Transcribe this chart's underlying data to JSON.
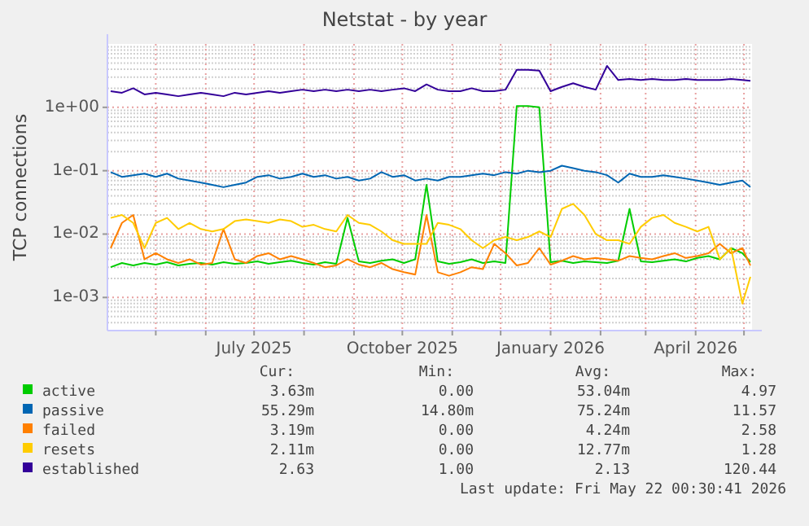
{
  "chart_data": {
    "type": "line",
    "title": "Netstat - by year",
    "ylabel": "TCP connections",
    "log": "y",
    "grid": true,
    "legend": "bottom",
    "xlim": [
      "2025-04-01",
      "2026-05-06"
    ],
    "xticks": [
      {
        "value": "2025-05-01",
        "label": null
      },
      {
        "value": "2025-06-01",
        "label": null
      },
      {
        "value": "2025-07-01",
        "label": "July 2025"
      },
      {
        "value": "2025-08-01",
        "label": null
      },
      {
        "value": "2025-09-01",
        "label": null
      },
      {
        "value": "2025-10-01",
        "label": "October 2025"
      },
      {
        "value": "2025-11-01",
        "label": null
      },
      {
        "value": "2025-12-01",
        "label": null
      },
      {
        "value": "2026-01-01",
        "label": "January 2026"
      },
      {
        "value": "2026-02-01",
        "label": null
      },
      {
        "value": "2026-03-01",
        "label": null
      },
      {
        "value": "2026-04-01",
        "label": "April 2026"
      },
      {
        "value": "2026-05-01",
        "label": null
      }
    ],
    "ylim": [
      0.0003,
      10
    ],
    "yticks": [
      {
        "value": 0.001,
        "label": "1e-03"
      },
      {
        "value": 0.01,
        "label": "1e-02"
      },
      {
        "value": 0.1,
        "label": "1e-01"
      },
      {
        "value": 1,
        "label": "1e+00"
      }
    ],
    "x": [
      "2025-04-03",
      "2025-04-10",
      "2025-04-17",
      "2025-04-24",
      "2025-05-01",
      "2025-05-08",
      "2025-05-15",
      "2025-05-22",
      "2025-05-29",
      "2025-06-05",
      "2025-06-12",
      "2025-06-19",
      "2025-06-26",
      "2025-07-03",
      "2025-07-10",
      "2025-07-17",
      "2025-07-24",
      "2025-07-31",
      "2025-08-07",
      "2025-08-14",
      "2025-08-21",
      "2025-08-28",
      "2025-09-04",
      "2025-09-11",
      "2025-09-18",
      "2025-09-25",
      "2025-10-02",
      "2025-10-09",
      "2025-10-16",
      "2025-10-23",
      "2025-10-30",
      "2025-11-06",
      "2025-11-13",
      "2025-11-20",
      "2025-11-27",
      "2025-12-04",
      "2025-12-11",
      "2025-12-18",
      "2025-12-25",
      "2026-01-01",
      "2026-01-08",
      "2026-01-15",
      "2026-01-22",
      "2026-01-29",
      "2026-02-05",
      "2026-02-12",
      "2026-02-19",
      "2026-02-26",
      "2026-03-05",
      "2026-03-12",
      "2026-03-19",
      "2026-03-26",
      "2026-04-02",
      "2026-04-09",
      "2026-04-16",
      "2026-04-23",
      "2026-04-30",
      "2026-05-05"
    ],
    "series": [
      {
        "name": "active",
        "color": "#00cc00",
        "values": [
          0.003,
          0.0035,
          0.0032,
          0.0035,
          0.0033,
          0.0036,
          0.0032,
          0.0034,
          0.0035,
          0.0033,
          0.0036,
          0.0034,
          0.0035,
          0.0037,
          0.0034,
          0.0036,
          0.0038,
          0.0035,
          0.0033,
          0.0036,
          0.0034,
          0.018,
          0.0037,
          0.0035,
          0.0038,
          0.004,
          0.0035,
          0.004,
          0.06,
          0.0037,
          0.0034,
          0.0036,
          0.004,
          0.0035,
          0.0037,
          0.0035,
          1.05,
          1.05,
          1.0,
          0.0036,
          0.0038,
          0.0035,
          0.0037,
          0.0036,
          0.0035,
          0.0038,
          0.025,
          0.0037,
          0.0036,
          0.0038,
          0.004,
          0.0037,
          0.0042,
          0.0045,
          0.004,
          0.006,
          0.005,
          0.00363
        ]
      },
      {
        "name": "passive",
        "color": "#0066b3",
        "values": [
          0.095,
          0.08,
          0.085,
          0.09,
          0.08,
          0.09,
          0.075,
          0.07,
          0.065,
          0.06,
          0.055,
          0.06,
          0.065,
          0.08,
          0.085,
          0.075,
          0.08,
          0.09,
          0.08,
          0.085,
          0.075,
          0.08,
          0.07,
          0.075,
          0.095,
          0.08,
          0.085,
          0.07,
          0.075,
          0.07,
          0.08,
          0.08,
          0.085,
          0.09,
          0.085,
          0.095,
          0.09,
          0.1,
          0.095,
          0.1,
          0.12,
          0.11,
          0.1,
          0.095,
          0.085,
          0.065,
          0.09,
          0.08,
          0.08,
          0.085,
          0.08,
          0.075,
          0.07,
          0.065,
          0.06,
          0.065,
          0.07,
          0.05529
        ]
      },
      {
        "name": "failed",
        "color": "#ff8000",
        "values": [
          0.006,
          0.015,
          0.02,
          0.004,
          0.005,
          0.004,
          0.0035,
          0.004,
          0.0033,
          0.0035,
          0.012,
          0.004,
          0.0035,
          0.0045,
          0.005,
          0.004,
          0.0045,
          0.004,
          0.0035,
          0.003,
          0.0032,
          0.004,
          0.0033,
          0.003,
          0.0035,
          0.0028,
          0.0025,
          0.0023,
          0.02,
          0.0025,
          0.0022,
          0.0025,
          0.003,
          0.0028,
          0.007,
          0.005,
          0.0032,
          0.0035,
          0.006,
          0.0033,
          0.0038,
          0.0045,
          0.004,
          0.0042,
          0.004,
          0.0038,
          0.0045,
          0.0042,
          0.004,
          0.0045,
          0.005,
          0.0042,
          0.0045,
          0.005,
          0.007,
          0.005,
          0.006,
          0.00319
        ]
      },
      {
        "name": "resets",
        "color": "#ffcc00",
        "values": [
          0.018,
          0.02,
          0.015,
          0.006,
          0.015,
          0.018,
          0.012,
          0.015,
          0.012,
          0.011,
          0.012,
          0.016,
          0.017,
          0.016,
          0.015,
          0.017,
          0.016,
          0.013,
          0.014,
          0.012,
          0.011,
          0.02,
          0.015,
          0.014,
          0.011,
          0.008,
          0.007,
          0.007,
          0.007,
          0.015,
          0.014,
          0.012,
          0.008,
          0.006,
          0.008,
          0.009,
          0.008,
          0.009,
          0.011,
          0.009,
          0.025,
          0.03,
          0.02,
          0.01,
          0.008,
          0.008,
          0.007,
          0.013,
          0.018,
          0.02,
          0.015,
          0.013,
          0.011,
          0.013,
          0.004,
          0.006,
          0.0008,
          0.00211
        ]
      },
      {
        "name": "established",
        "color": "#330099",
        "values": [
          1.8,
          1.7,
          2.0,
          1.6,
          1.7,
          1.6,
          1.5,
          1.6,
          1.7,
          1.6,
          1.5,
          1.7,
          1.6,
          1.7,
          1.8,
          1.7,
          1.8,
          1.9,
          1.8,
          1.9,
          1.8,
          1.9,
          1.8,
          1.9,
          1.8,
          1.9,
          2.0,
          1.8,
          2.3,
          1.9,
          1.8,
          1.8,
          2.0,
          1.8,
          1.8,
          1.9,
          3.9,
          3.9,
          3.8,
          1.8,
          2.1,
          2.4,
          2.1,
          1.9,
          4.5,
          2.7,
          2.8,
          2.7,
          2.8,
          2.7,
          2.7,
          2.8,
          2.7,
          2.7,
          2.7,
          2.8,
          2.7,
          2.63
        ]
      }
    ],
    "annotations": [
      "Cur:",
      "Min:",
      "Avg:",
      "Max:",
      "3.63m",
      "0.00",
      "53.04m",
      "4.97",
      "55.29m",
      "14.80m",
      "75.24m",
      "11.57",
      "3.19m",
      "0.00",
      "4.24m",
      "2.58",
      "2.11m",
      "0.00",
      "12.77m",
      "1.28",
      "2.63",
      "1.00",
      "2.13",
      "120.44",
      "Last update: Fri May 22 00:30:41 2026"
    ]
  }
}
